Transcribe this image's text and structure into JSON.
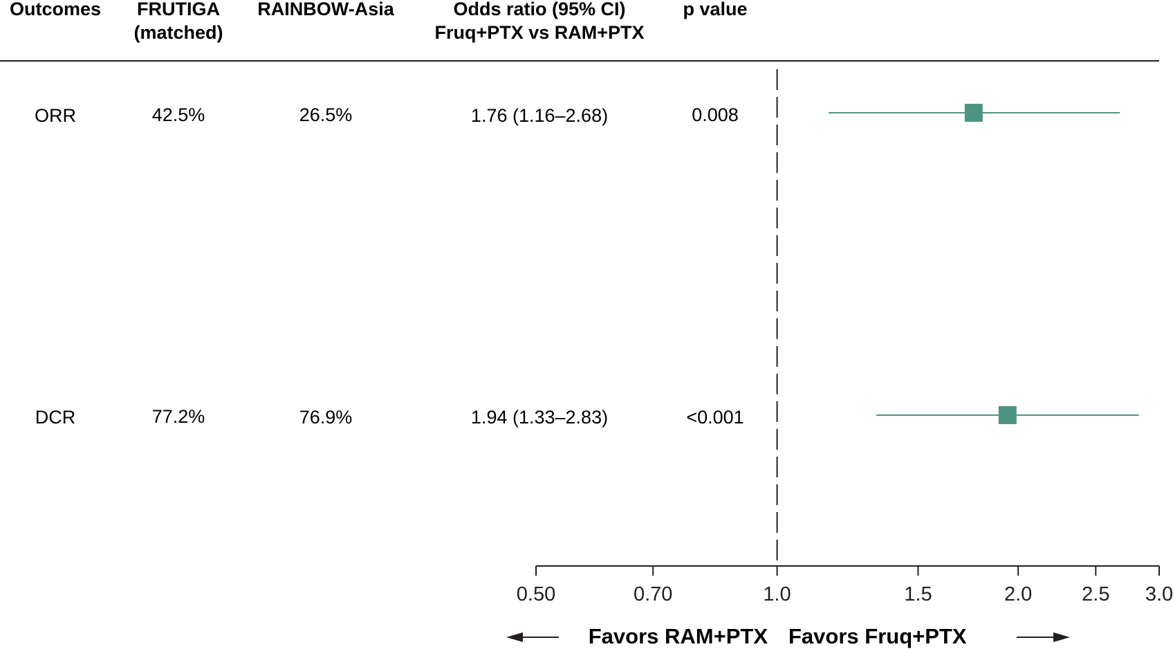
{
  "headers": {
    "outcomes": "Outcomes",
    "frutiga_line1": "FRUTIGA",
    "frutiga_line2": "(matched)",
    "rainbow": "RAINBOW-Asia",
    "or_line1": "Odds ratio (95% CI)",
    "or_line2": "Fruq+PTX vs RAM+PTX",
    "p": "p value"
  },
  "rows": [
    {
      "outcome": "ORR",
      "frutiga": "42.5%",
      "rainbow": "26.5%",
      "or_text": "1.76 (1.16–2.68)",
      "p": "0.008"
    },
    {
      "outcome": "DCR",
      "frutiga": "77.2%",
      "rainbow": "76.9%",
      "or_text": "1.94 (1.33–2.83)",
      "p": "<0.001"
    }
  ],
  "favors": {
    "left": "Favors RAM+PTX",
    "right": "Favors Fruq+PTX"
  },
  "colors": {
    "marker": "#4e9484",
    "text": "#231f20",
    "line": "#231f20"
  },
  "chart_data": {
    "type": "forest",
    "scale": "log",
    "xlim": [
      0.5,
      3.0
    ],
    "x_ticks": [
      0.5,
      0.7,
      1.0,
      1.5,
      2.0,
      2.5,
      3.0
    ],
    "x_tick_labels": [
      "0.50",
      "0.70",
      "1.0",
      "1.5",
      "2.0",
      "2.5",
      "3.0"
    ],
    "reference_line": 1.0,
    "categories": [
      "ORR",
      "DCR"
    ],
    "estimates": [
      1.76,
      1.94
    ],
    "ci_low": [
      1.16,
      1.33
    ],
    "ci_high": [
      2.68,
      2.83
    ]
  }
}
